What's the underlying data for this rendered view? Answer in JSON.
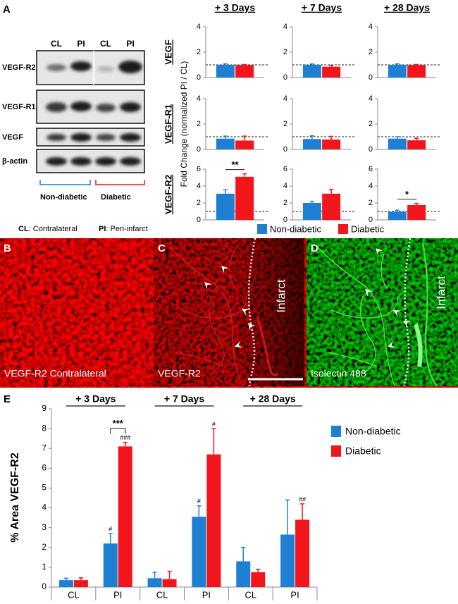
{
  "panel_labels": [
    "A",
    "B",
    "C",
    "D",
    "E"
  ],
  "blot": {
    "lanes": [
      "CL",
      "PI",
      "CL",
      "PI"
    ],
    "proteins": [
      "VEGF-R2",
      "VEGF-R1",
      "VEGF",
      "β-actin"
    ],
    "groups": [
      "Non-diabetic",
      "Diabetic"
    ],
    "key": [
      {
        "abbr": "CL",
        "text": ": Contralateral"
      },
      {
        "abbr": "PI",
        "text": ": Peri-infarct"
      }
    ]
  },
  "fold_change": {
    "y_label": "Fold Change  (normalized PI / CL)",
    "columns": [
      "+ 3 Days",
      "+ 7 Days",
      "+ 28 Days"
    ],
    "rows": [
      "VEGF",
      "VEGF-R1",
      "VEGF-R2"
    ],
    "legend": [
      "Non-diabetic",
      "Diabetic"
    ]
  },
  "images": [
    {
      "caption": "VEGF-R2 Contralateral"
    },
    {
      "caption": "VEGF-R2",
      "region": "Infarct"
    },
    {
      "caption": "Isolectin 488",
      "region": "Infarct"
    }
  ],
  "chart_data": [
    {
      "type": "bar",
      "categories": [
        null
      ],
      "ylim": [
        0,
        4
      ],
      "yticks": [
        0,
        2,
        4
      ],
      "reference_line": 1,
      "series": [
        {
          "color": "#1d80d2",
          "values": [
            1.0
          ],
          "errors": [
            0.08
          ]
        },
        {
          "color": "#f2161c",
          "values": [
            0.98
          ],
          "errors": [
            0.05
          ]
        }
      ]
    },
    {
      "type": "bar",
      "categories": [
        null
      ],
      "ylim": [
        0,
        4
      ],
      "yticks": [
        0,
        2,
        4
      ],
      "reference_line": 1,
      "series": [
        {
          "color": "#1d80d2",
          "values": [
            1.0
          ],
          "errors": [
            0.07
          ]
        },
        {
          "color": "#f2161c",
          "values": [
            0.85
          ],
          "errors": [
            0.08
          ]
        }
      ]
    },
    {
      "type": "bar",
      "categories": [
        null
      ],
      "ylim": [
        0,
        4
      ],
      "yticks": [
        0,
        2,
        4
      ],
      "reference_line": 1,
      "series": [
        {
          "color": "#1d80d2",
          "values": [
            1.0
          ],
          "errors": [
            0.08
          ]
        },
        {
          "color": "#f2161c",
          "values": [
            0.98
          ],
          "errors": [
            0.05
          ]
        }
      ]
    },
    {
      "type": "bar",
      "categories": [
        null
      ],
      "ylim": [
        0,
        4
      ],
      "yticks": [
        0,
        2,
        4
      ],
      "reference_line": 1,
      "series": [
        {
          "color": "#1d80d2",
          "values": [
            0.85
          ],
          "errors": [
            0.2
          ]
        },
        {
          "color": "#f2161c",
          "values": [
            0.7
          ],
          "errors": [
            0.35
          ]
        }
      ]
    },
    {
      "type": "bar",
      "categories": [
        null
      ],
      "ylim": [
        0,
        4
      ],
      "yticks": [
        0,
        2,
        4
      ],
      "reference_line": 1,
      "series": [
        {
          "color": "#1d80d2",
          "values": [
            0.82
          ],
          "errors": [
            0.25
          ]
        },
        {
          "color": "#f2161c",
          "values": [
            0.78
          ],
          "errors": [
            0.25
          ]
        }
      ]
    },
    {
      "type": "bar",
      "categories": [
        null
      ],
      "ylim": [
        0,
        4
      ],
      "yticks": [
        0,
        2,
        4
      ],
      "reference_line": 1,
      "series": [
        {
          "color": "#1d80d2",
          "values": [
            0.85
          ],
          "errors": [
            0.15
          ]
        },
        {
          "color": "#f2161c",
          "values": [
            0.72
          ],
          "errors": [
            0.15
          ]
        }
      ]
    },
    {
      "type": "bar",
      "categories": [
        null
      ],
      "ylim": [
        0,
        6
      ],
      "yticks": [
        0,
        2,
        4,
        6
      ],
      "reference_line": 1,
      "brackets": [
        "**"
      ],
      "series": [
        {
          "color": "#1d80d2",
          "values": [
            3.1
          ],
          "errors": [
            0.45
          ]
        },
        {
          "color": "#f2161c",
          "values": [
            5.1
          ],
          "errors": [
            0.35
          ]
        }
      ]
    },
    {
      "type": "bar",
      "categories": [
        null
      ],
      "ylim": [
        0,
        6
      ],
      "yticks": [
        0,
        2,
        4,
        6
      ],
      "reference_line": 1,
      "series": [
        {
          "color": "#1d80d2",
          "values": [
            2.0
          ],
          "errors": [
            0.2
          ]
        },
        {
          "color": "#f2161c",
          "values": [
            3.1
          ],
          "errors": [
            0.5
          ]
        }
      ]
    },
    {
      "type": "bar",
      "categories": [
        null
      ],
      "ylim": [
        0,
        6
      ],
      "yticks": [
        0,
        2,
        4,
        6
      ],
      "reference_line": 1,
      "brackets": [
        "*"
      ],
      "series": [
        {
          "color": "#1d80d2",
          "values": [
            0.95
          ],
          "errors": [
            0.2
          ]
        },
        {
          "color": "#f2161c",
          "values": [
            1.75
          ],
          "errors": [
            0.2
          ]
        }
      ]
    },
    {
      "type": "bar",
      "y_label": "% Area VEGF-R2",
      "groups": [
        "+ 3 Days",
        "+ 7 Days",
        "+ 28 Days"
      ],
      "categories": [
        "CL",
        "PI",
        "CL",
        "PI",
        "CL",
        "PI"
      ],
      "ylim": [
        0,
        9
      ],
      "yticks": [
        0,
        1,
        2,
        3,
        4,
        5,
        6,
        7,
        8,
        9
      ],
      "brackets": [
        null,
        "***",
        null,
        null,
        null,
        null
      ],
      "series": [
        {
          "name": "Non-diabetic",
          "color": "#1d80d2",
          "values": [
            0.35,
            2.2,
            0.45,
            3.55,
            1.3,
            2.65
          ],
          "errors": [
            0.1,
            0.5,
            0.3,
            0.55,
            0.7,
            1.75
          ],
          "significance": [
            null,
            "#",
            null,
            "#",
            null,
            null
          ]
        },
        {
          "name": "Diabetic",
          "color": "#f2161c",
          "values": [
            0.35,
            7.1,
            0.4,
            6.7,
            0.75,
            3.4
          ],
          "errors": [
            0.12,
            0.2,
            0.4,
            1.3,
            0.15,
            0.8
          ],
          "significance": [
            null,
            "###",
            null,
            "#",
            null,
            "##"
          ]
        }
      ]
    }
  ]
}
